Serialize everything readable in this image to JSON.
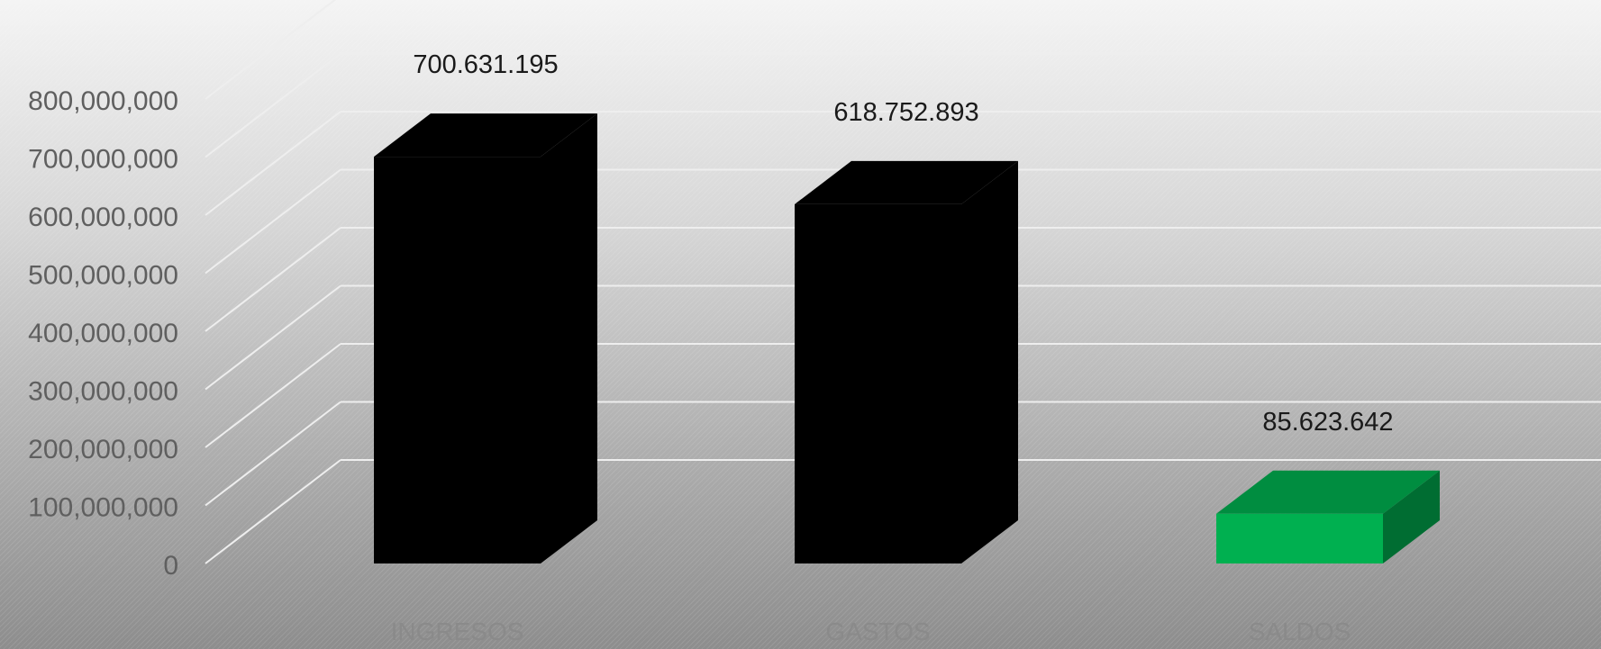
{
  "chart_data": {
    "type": "bar",
    "style": "3d-column",
    "categories": [
      "INGRESOS",
      "GASTOS",
      "SALDOS"
    ],
    "values": [
      700631195,
      618752893,
      85623642
    ],
    "data_labels": [
      "700.631.195",
      "618.752.893",
      "85.623.642"
    ],
    "colors": [
      "#000000",
      "#000000",
      "#00b050"
    ],
    "y_ticks": [
      "0",
      "100,000,000",
      "200,000,000",
      "300,000,000",
      "400,000,000",
      "500,000,000",
      "600,000,000",
      "700,000,000",
      "800,000,000"
    ],
    "ylim": [
      0,
      800000000
    ],
    "grid": true,
    "legend": "none"
  }
}
